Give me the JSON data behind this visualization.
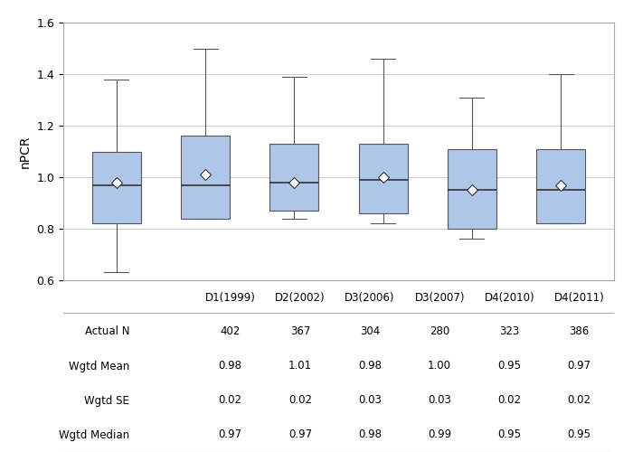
{
  "categories": [
    "D1(1999)",
    "D2(2002)",
    "D3(2006)",
    "D3(2007)",
    "D4(2010)",
    "D4(2011)"
  ],
  "box_data": [
    {
      "whislo": 0.63,
      "q1": 0.82,
      "med": 0.97,
      "q3": 1.1,
      "whishi": 1.38,
      "mean": 0.98
    },
    {
      "whislo": 0.84,
      "q1": 0.84,
      "med": 0.97,
      "q3": 1.16,
      "whishi": 1.5,
      "mean": 1.01
    },
    {
      "whislo": 0.84,
      "q1": 0.87,
      "med": 0.98,
      "q3": 1.13,
      "whishi": 1.39,
      "mean": 0.98
    },
    {
      "whislo": 0.82,
      "q1": 0.86,
      "med": 0.99,
      "q3": 1.13,
      "whishi": 1.46,
      "mean": 1.0
    },
    {
      "whislo": 0.76,
      "q1": 0.8,
      "med": 0.95,
      "q3": 1.11,
      "whishi": 1.31,
      "mean": 0.95
    },
    {
      "whislo": 0.82,
      "q1": 0.82,
      "med": 0.95,
      "q3": 1.11,
      "whishi": 1.4,
      "mean": 0.97
    }
  ],
  "actual_n": [
    402,
    367,
    304,
    280,
    323,
    386
  ],
  "wgtd_mean": [
    0.98,
    1.01,
    0.98,
    1.0,
    0.95,
    0.97
  ],
  "wgtd_se": [
    0.02,
    0.02,
    0.03,
    0.03,
    0.02,
    0.02
  ],
  "wgtd_median": [
    0.97,
    0.97,
    0.98,
    0.99,
    0.95,
    0.95
  ],
  "box_facecolor": "#aec6e8",
  "box_edgecolor": "#555555",
  "median_color": "#333333",
  "whisker_color": "#555555",
  "cap_color": "#555555",
  "mean_marker_facecolor": "white",
  "mean_marker_edgecolor": "#333333",
  "ylabel": "nPCR",
  "ylim": [
    0.6,
    1.6
  ],
  "yticks": [
    0.6,
    0.8,
    1.0,
    1.2,
    1.4,
    1.6
  ],
  "grid_color": "#cccccc",
  "line_color": "#aaaaaa",
  "background_color": "#ffffff",
  "table_row_labels": [
    "Actual N",
    "Wgtd Mean",
    "Wgtd SE",
    "Wgtd Median"
  ],
  "fig_width": 7.0,
  "fig_height": 5.0,
  "fontsize": 8.5
}
